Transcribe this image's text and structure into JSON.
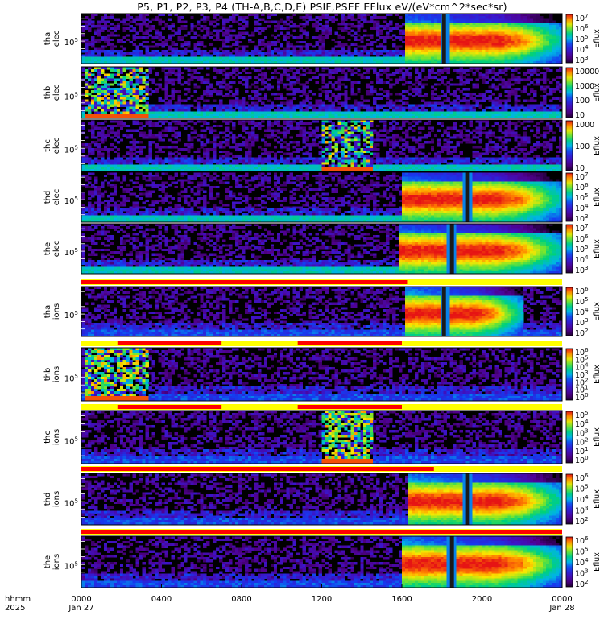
{
  "title": "P5, P1, P2, P3, P4 (TH-A,B,C,D,E) PSIF,PSEF EFlux eV/(eV*cm^2*sec*sr)",
  "chart_data": {
    "type": "heatmap",
    "time_range": [
      "0000 Jan 27",
      "0000 Jan 28"
    ],
    "x_ticks": [
      "0000",
      "0400",
      "0800",
      "1200",
      "1600",
      "2000",
      "0000"
    ],
    "x_tick_dates": [
      "Jan 27",
      "",
      "",
      "",
      "",
      "",
      "Jan 28"
    ],
    "row_header": {
      "format": "hhmm",
      "year": "2025"
    },
    "y_tick_label": "10^5",
    "colorbar_label": "Eflux",
    "panels": [
      {
        "probe": "tha",
        "species": "elec",
        "ytick": "10^5",
        "cb_ticks": [
          "10^7",
          "10^6",
          "10^5",
          "10^4",
          "10^3"
        ],
        "cb_label": "Eflux",
        "active_window_hours": [
          16.2,
          24.0
        ],
        "gap_hours": [
          18.0,
          18.2
        ],
        "regime": "magnetosheath",
        "state_bar": false
      },
      {
        "probe": "thb",
        "species": "elec",
        "ytick": "10^5",
        "cb_ticks": [
          "10000",
          "1000",
          "100",
          "10"
        ],
        "cb_label": "Eflux",
        "burst_hours": [
          0.2,
          3.4
        ],
        "regime": "solar wind",
        "state_bar": false
      },
      {
        "probe": "thc",
        "species": "elec",
        "ytick": "10^5",
        "cb_ticks": [
          "1000",
          "100",
          "10"
        ],
        "cb_label": "Eflux",
        "burst_hours": [
          12.0,
          14.5
        ],
        "regime": "solar wind",
        "state_bar": false
      },
      {
        "probe": "thd",
        "species": "elec",
        "ytick": "10^5",
        "cb_ticks": [
          "10^7",
          "10^6",
          "10^5",
          "10^4",
          "10^3"
        ],
        "cb_label": "Eflux",
        "active_window_hours": [
          16.0,
          24.0
        ],
        "gap_hours": [
          19.2,
          19.35
        ],
        "regime": "magnetosheath",
        "state_bar": false
      },
      {
        "probe": "the",
        "species": "elec",
        "ytick": "10^5",
        "cb_ticks": [
          "10^7",
          "10^6",
          "10^5",
          "10^4",
          "10^3"
        ],
        "cb_label": "Eflux",
        "active_window_hours": [
          15.8,
          24.0
        ],
        "gap_hours": [
          18.4,
          18.6
        ],
        "regime": "magnetosheath",
        "state_bar": true,
        "state_red_until_hours": 16.3
      },
      {
        "probe": "tha",
        "species": "ions",
        "ytick": "10^5",
        "cb_ticks": [
          "10^6",
          "10^5",
          "10^4",
          "10^3",
          "10^2"
        ],
        "cb_label": "Eflux",
        "active_window_hours": [
          16.2,
          22.0
        ],
        "gap_hours": [
          18.0,
          18.2
        ],
        "regime": "magnetosheath",
        "state_bar": true,
        "state_red_segments_hours": [
          [
            1.8,
            7.0
          ],
          [
            10.8,
            16.0
          ]
        ]
      },
      {
        "probe": "thb",
        "species": "ions",
        "ytick": "10^5",
        "cb_ticks": [
          "10^6",
          "10^5",
          "10^4",
          "10^3",
          "10^2",
          "10^1",
          "10^0"
        ],
        "cb_label": "Eflux",
        "burst_hours": [
          0.2,
          3.4
        ],
        "regime": "solar wind",
        "state_bar": true,
        "state_red_segments_hours": [
          [
            1.8,
            7.0
          ],
          [
            10.8,
            16.0
          ]
        ]
      },
      {
        "probe": "thc",
        "species": "ions",
        "ytick": "10^5",
        "cb_ticks": [
          "10^5",
          "10^4",
          "10^3",
          "10^2",
          "10^1",
          "10^0"
        ],
        "cb_label": "Eflux",
        "burst_hours": [
          12.0,
          14.5
        ],
        "regime": "solar wind",
        "state_bar": true,
        "state_red_until_hours": 17.6
      },
      {
        "probe": "thd",
        "species": "ions",
        "ytick": "10^5",
        "cb_ticks": [
          "10^6",
          "10^5",
          "10^4",
          "10^3",
          "10^2"
        ],
        "cb_label": "Eflux",
        "active_window_hours": [
          16.3,
          24.0
        ],
        "gap_hours": [
          19.2,
          19.35
        ],
        "regime": "magnetosheath",
        "state_bar": true,
        "state_red_until_hours": 24.0
      },
      {
        "probe": "the",
        "species": "ions",
        "ytick": "10^5",
        "cb_ticks": [
          "10^6",
          "10^5",
          "10^4",
          "10^3",
          "10^2"
        ],
        "cb_label": "Eflux",
        "active_window_hours": [
          16.0,
          24.0
        ],
        "gap_hours": [
          18.4,
          18.6
        ],
        "regime": "magnetosheath",
        "state_bar": false
      }
    ]
  }
}
